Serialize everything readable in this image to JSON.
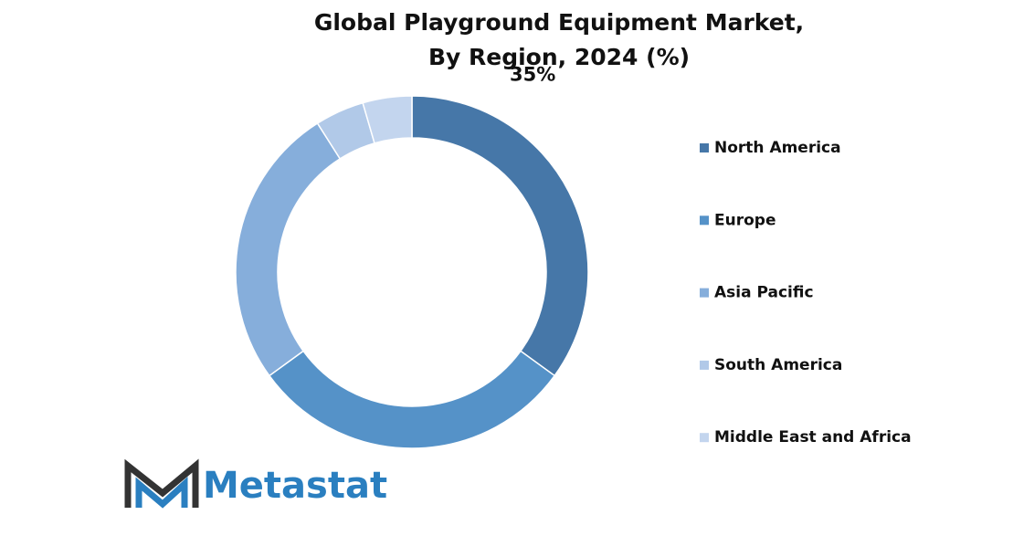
{
  "chart_data": {
    "type": "donut",
    "title": "Global Playground Equipment Market,\nBy Region, 2024 (%)",
    "categories": [
      "North America",
      "Europe",
      "Asia Pacific",
      "South America",
      "Middle East and Africa"
    ],
    "values": [
      35,
      30,
      26,
      4.5,
      4.5
    ],
    "value_labels": [
      "35%",
      null,
      null,
      null,
      null
    ],
    "colors": [
      "#4677a8",
      "#5592c8",
      "#86aedb",
      "#b1c9e8",
      "#c3d5ee"
    ],
    "legend": "right"
  },
  "logo": {
    "text": "Metastat"
  }
}
